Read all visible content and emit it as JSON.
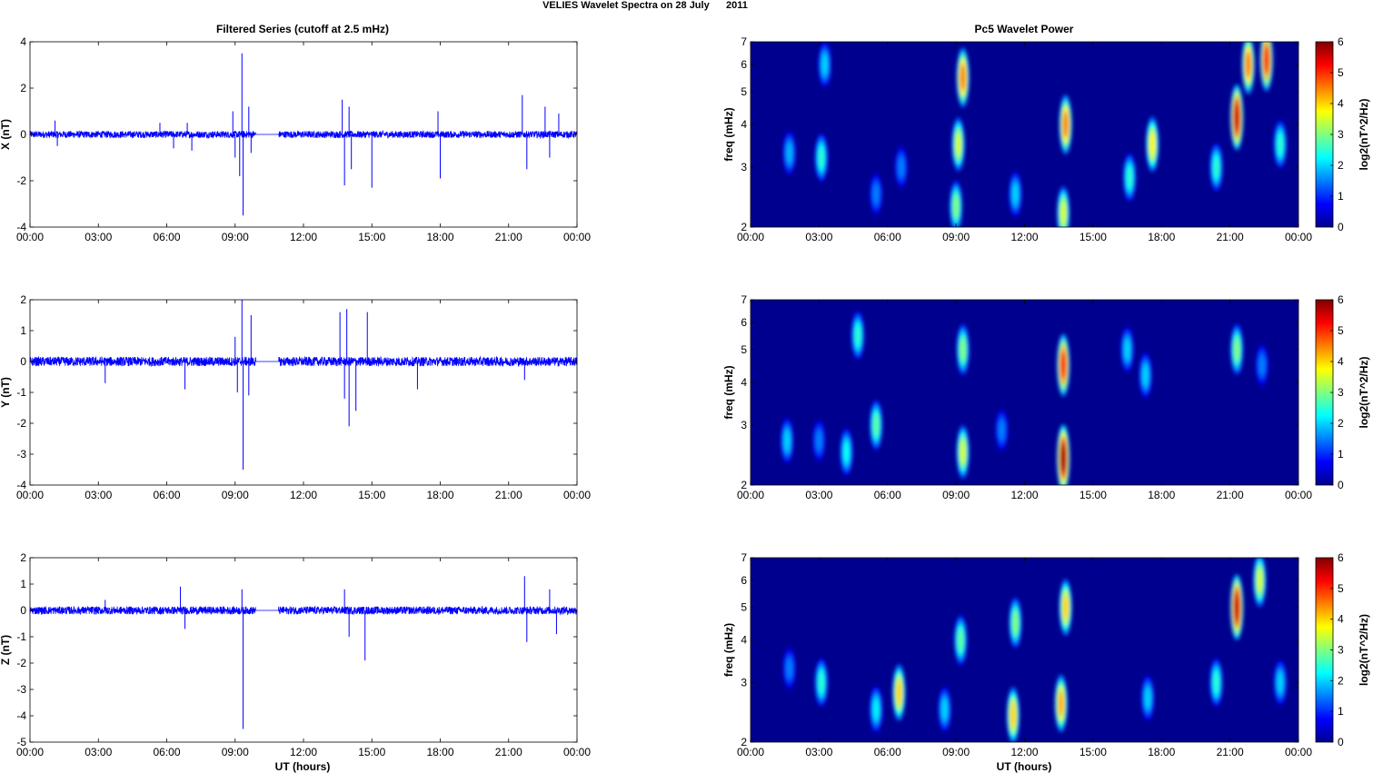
{
  "figure": {
    "title": "VELIES Wavelet Spectra on 28 July      2011",
    "left_column_title": "Filtered Series (cutoff at 2.5 mHz)",
    "right_column_title": "Pc5 Wavelet Power",
    "xlabel": "UT (hours)"
  },
  "colors": {
    "trace": "#0000ff",
    "axis": "#000000",
    "background": "#00008f"
  },
  "chart_data": [
    {
      "type": "line",
      "panel": "X",
      "ylabel": "X (nT)",
      "xlabel": "",
      "x_unit": "hours UT",
      "xlim": [
        0,
        24
      ],
      "ylim": [
        -4,
        4
      ],
      "x_ticks": [
        "00:00",
        "03:00",
        "06:00",
        "09:00",
        "12:00",
        "15:00",
        "18:00",
        "21:00",
        "00:00"
      ],
      "y_ticks": [
        "-4",
        "-2",
        "0",
        "2",
        "4"
      ],
      "y_tick_values": [
        -4,
        -2,
        0,
        2,
        4
      ],
      "baseline_amplitude": 0.15,
      "gap": [
        9.9,
        10.9
      ],
      "spikes": [
        {
          "t": 1.1,
          "v": 0.6
        },
        {
          "t": 1.2,
          "v": -0.5
        },
        {
          "t": 5.7,
          "v": 0.5
        },
        {
          "t": 6.3,
          "v": -0.6
        },
        {
          "t": 6.9,
          "v": 0.5
        },
        {
          "t": 7.1,
          "v": -0.7
        },
        {
          "t": 8.9,
          "v": 1.0
        },
        {
          "t": 9.0,
          "v": -1.0
        },
        {
          "t": 9.2,
          "v": -1.8
        },
        {
          "t": 9.3,
          "v": 3.5
        },
        {
          "t": 9.35,
          "v": -3.5
        },
        {
          "t": 9.6,
          "v": 1.2
        },
        {
          "t": 9.7,
          "v": -0.8
        },
        {
          "t": 13.7,
          "v": 1.5
        },
        {
          "t": 13.8,
          "v": -2.2
        },
        {
          "t": 14.0,
          "v": 1.2
        },
        {
          "t": 14.1,
          "v": -1.5
        },
        {
          "t": 15.0,
          "v": -2.3
        },
        {
          "t": 17.9,
          "v": 1.0
        },
        {
          "t": 18.0,
          "v": -1.9
        },
        {
          "t": 21.6,
          "v": 1.7
        },
        {
          "t": 21.8,
          "v": -1.5
        },
        {
          "t": 22.6,
          "v": 1.2
        },
        {
          "t": 22.8,
          "v": -1.0
        },
        {
          "t": 23.2,
          "v": 0.9
        }
      ]
    },
    {
      "type": "line",
      "panel": "Y",
      "ylabel": "Y (nT)",
      "xlabel": "",
      "x_unit": "hours UT",
      "xlim": [
        0,
        24
      ],
      "ylim": [
        -4,
        2
      ],
      "x_ticks": [
        "00:00",
        "03:00",
        "06:00",
        "09:00",
        "12:00",
        "15:00",
        "18:00",
        "21:00",
        "00:00"
      ],
      "y_ticks": [
        "-4",
        "-3",
        "-2",
        "-1",
        "0",
        "1",
        "2"
      ],
      "y_tick_values": [
        -4,
        -3,
        -2,
        -1,
        0,
        1,
        2
      ],
      "baseline_amplitude": 0.15,
      "gap": [
        9.9,
        10.9
      ],
      "spikes": [
        {
          "t": 3.3,
          "v": -0.7
        },
        {
          "t": 6.8,
          "v": -0.9
        },
        {
          "t": 9.0,
          "v": 0.8
        },
        {
          "t": 9.1,
          "v": -1.0
        },
        {
          "t": 9.3,
          "v": 2.0
        },
        {
          "t": 9.35,
          "v": -3.5
        },
        {
          "t": 9.6,
          "v": -1.1
        },
        {
          "t": 9.7,
          "v": 1.5
        },
        {
          "t": 13.6,
          "v": 1.6
        },
        {
          "t": 13.8,
          "v": -1.2
        },
        {
          "t": 13.9,
          "v": 1.7
        },
        {
          "t": 14.0,
          "v": -2.1
        },
        {
          "t": 14.3,
          "v": -1.6
        },
        {
          "t": 14.8,
          "v": 1.6
        },
        {
          "t": 17.0,
          "v": -0.9
        },
        {
          "t": 21.7,
          "v": -0.6
        }
      ]
    },
    {
      "type": "line",
      "panel": "Z",
      "ylabel": "Z (nT)",
      "xlabel": "UT (hours)",
      "x_unit": "hours UT",
      "xlim": [
        0,
        24
      ],
      "ylim": [
        -5,
        2
      ],
      "x_ticks": [
        "00:00",
        "03:00",
        "06:00",
        "09:00",
        "12:00",
        "15:00",
        "18:00",
        "21:00",
        "00:00"
      ],
      "y_ticks": [
        "-5",
        "-4",
        "-3",
        "-2",
        "-1",
        "0",
        "1",
        "2"
      ],
      "y_tick_values": [
        -5,
        -4,
        -3,
        -2,
        -1,
        0,
        1,
        2
      ],
      "baseline_amplitude": 0.15,
      "gap": [
        9.9,
        10.9
      ],
      "spikes": [
        {
          "t": 3.3,
          "v": 0.4
        },
        {
          "t": 6.6,
          "v": 0.9
        },
        {
          "t": 6.8,
          "v": -0.7
        },
        {
          "t": 9.3,
          "v": 0.8
        },
        {
          "t": 9.35,
          "v": -4.5
        },
        {
          "t": 13.8,
          "v": 0.8
        },
        {
          "t": 14.0,
          "v": -1.0
        },
        {
          "t": 14.7,
          "v": -1.9
        },
        {
          "t": 21.7,
          "v": 1.3
        },
        {
          "t": 21.8,
          "v": -1.2
        },
        {
          "t": 22.8,
          "v": 0.8
        },
        {
          "t": 23.1,
          "v": -0.9
        }
      ]
    },
    {
      "type": "heatmap",
      "panel": "X",
      "ylabel": "freq (mHz)",
      "xlabel": "",
      "xlim": [
        0,
        24
      ],
      "ylim": [
        2,
        7
      ],
      "yscale": "log",
      "x_ticks": [
        "00:00",
        "03:00",
        "06:00",
        "09:00",
        "12:00",
        "15:00",
        "18:00",
        "21:00",
        "00:00"
      ],
      "y_ticks": [
        "2",
        "3",
        "4",
        "5",
        "6",
        "7"
      ],
      "y_tick_values": [
        2,
        3,
        4,
        5,
        6,
        7
      ],
      "colorbar": {
        "label": "log2(nT^2/Hz)",
        "range": [
          0,
          6
        ],
        "ticks": [
          "0",
          "1",
          "2",
          "3",
          "4",
          "5",
          "6"
        ]
      },
      "blobs": [
        {
          "t": 1.7,
          "f": 3.3,
          "p": 1.8
        },
        {
          "t": 3.1,
          "f": 3.2,
          "p": 2.5
        },
        {
          "t": 3.25,
          "f": 6.0,
          "p": 2.0
        },
        {
          "t": 5.5,
          "f": 2.5,
          "p": 1.5
        },
        {
          "t": 6.6,
          "f": 3.0,
          "p": 1.5
        },
        {
          "t": 9.0,
          "f": 2.3,
          "p": 3.0
        },
        {
          "t": 9.1,
          "f": 3.5,
          "p": 3.5
        },
        {
          "t": 9.3,
          "f": 5.5,
          "p": 4.5
        },
        {
          "t": 11.6,
          "f": 2.5,
          "p": 2.0
        },
        {
          "t": 13.7,
          "f": 2.2,
          "p": 3.5
        },
        {
          "t": 13.8,
          "f": 4.0,
          "p": 4.5
        },
        {
          "t": 16.6,
          "f": 2.8,
          "p": 2.5
        },
        {
          "t": 17.6,
          "f": 3.5,
          "p": 3.8
        },
        {
          "t": 20.4,
          "f": 3.0,
          "p": 2.5
        },
        {
          "t": 21.3,
          "f": 4.2,
          "p": 5.5
        },
        {
          "t": 21.8,
          "f": 6.0,
          "p": 4.5
        },
        {
          "t": 22.6,
          "f": 6.2,
          "p": 5.0
        },
        {
          "t": 23.2,
          "f": 3.5,
          "p": 2.5
        }
      ]
    },
    {
      "type": "heatmap",
      "panel": "Y",
      "ylabel": "freq (mHz)",
      "xlabel": "",
      "xlim": [
        0,
        24
      ],
      "ylim": [
        2,
        7
      ],
      "yscale": "log",
      "x_ticks": [
        "00:00",
        "03:00",
        "06:00",
        "09:00",
        "12:00",
        "15:00",
        "18:00",
        "21:00",
        "00:00"
      ],
      "y_ticks": [
        "2",
        "3",
        "4",
        "5",
        "6",
        "7"
      ],
      "y_tick_values": [
        2,
        3,
        4,
        5,
        6,
        7
      ],
      "colorbar": {
        "label": "log2(nT^2/Hz)",
        "range": [
          0,
          6
        ],
        "ticks": [
          "0",
          "1",
          "2",
          "3",
          "4",
          "5",
          "6"
        ]
      },
      "blobs": [
        {
          "t": 1.6,
          "f": 2.7,
          "p": 2.0
        },
        {
          "t": 3.0,
          "f": 2.7,
          "p": 1.5
        },
        {
          "t": 4.2,
          "f": 2.5,
          "p": 2.3
        },
        {
          "t": 4.7,
          "f": 5.5,
          "p": 2.5
        },
        {
          "t": 5.5,
          "f": 3.0,
          "p": 2.8
        },
        {
          "t": 9.3,
          "f": 2.5,
          "p": 3.5
        },
        {
          "t": 9.3,
          "f": 5.0,
          "p": 3.0
        },
        {
          "t": 11.0,
          "f": 2.9,
          "p": 1.5
        },
        {
          "t": 13.7,
          "f": 2.4,
          "p": 5.8
        },
        {
          "t": 13.7,
          "f": 4.5,
          "p": 5.0
        },
        {
          "t": 16.5,
          "f": 5.0,
          "p": 2.0
        },
        {
          "t": 17.3,
          "f": 4.2,
          "p": 2.0
        },
        {
          "t": 21.3,
          "f": 5.0,
          "p": 3.0
        },
        {
          "t": 22.4,
          "f": 4.5,
          "p": 1.5
        }
      ]
    },
    {
      "type": "heatmap",
      "panel": "Z",
      "ylabel": "freq (mHz)",
      "xlabel": "UT (hours)",
      "xlim": [
        0,
        24
      ],
      "ylim": [
        2,
        7
      ],
      "yscale": "log",
      "x_ticks": [
        "00:00",
        "03:00",
        "06:00",
        "09:00",
        "12:00",
        "15:00",
        "18:00",
        "21:00",
        "00:00"
      ],
      "y_ticks": [
        "2",
        "3",
        "4",
        "5",
        "6",
        "7"
      ],
      "y_tick_values": [
        2,
        3,
        4,
        5,
        6,
        7
      ],
      "colorbar": {
        "label": "log2(nT^2/Hz)",
        "range": [
          0,
          6
        ],
        "ticks": [
          "0",
          "1",
          "2",
          "3",
          "4",
          "5",
          "6"
        ]
      },
      "blobs": [
        {
          "t": 1.7,
          "f": 3.3,
          "p": 1.5
        },
        {
          "t": 3.1,
          "f": 3.0,
          "p": 2.5
        },
        {
          "t": 5.5,
          "f": 2.5,
          "p": 2.2
        },
        {
          "t": 6.5,
          "f": 2.8,
          "p": 4.0
        },
        {
          "t": 8.5,
          "f": 2.5,
          "p": 2.0
        },
        {
          "t": 9.2,
          "f": 4.0,
          "p": 2.8
        },
        {
          "t": 11.5,
          "f": 2.4,
          "p": 4.0
        },
        {
          "t": 11.6,
          "f": 4.5,
          "p": 3.0
        },
        {
          "t": 13.6,
          "f": 2.6,
          "p": 4.2
        },
        {
          "t": 13.8,
          "f": 5.0,
          "p": 4.0
        },
        {
          "t": 17.4,
          "f": 2.7,
          "p": 2.0
        },
        {
          "t": 20.4,
          "f": 3.0,
          "p": 2.5
        },
        {
          "t": 21.3,
          "f": 5.0,
          "p": 5.5
        },
        {
          "t": 22.3,
          "f": 6.0,
          "p": 3.5
        },
        {
          "t": 23.2,
          "f": 3.0,
          "p": 2.0
        }
      ]
    }
  ]
}
